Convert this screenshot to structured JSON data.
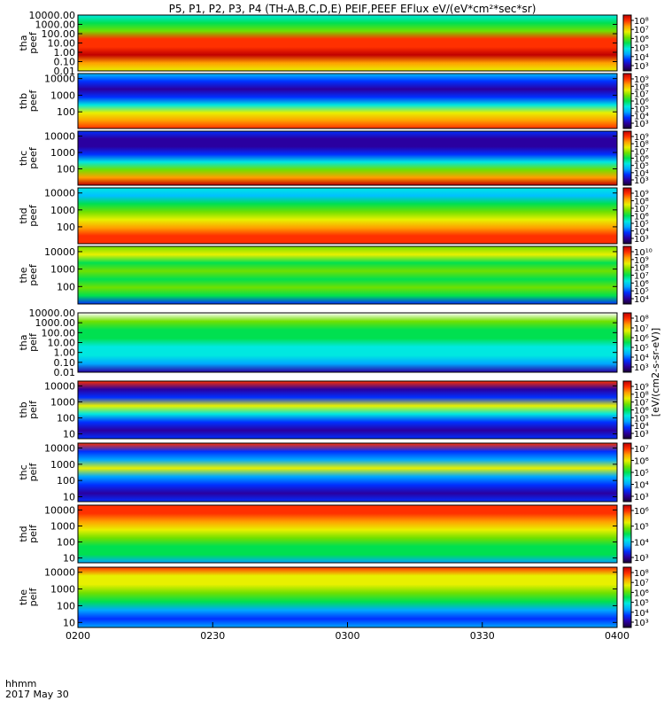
{
  "title": "P5, P1, P2, P3, P4 (TH-A,B,C,D,E) PEIF,PEEF EFlux eV/(eV*cm²*sec*sr)",
  "colorbar_label": "[eV/(cm2-s-sr-eV)]",
  "time_axis": {
    "row_label_1": "hhmm",
    "row_label_2": "2017 May 30",
    "ticks": [
      "0200",
      "0230",
      "0300",
      "0330",
      "0400"
    ],
    "range": [
      0,
      120
    ]
  },
  "colormap": [
    "#1a0033",
    "#2a00a0",
    "#0030ff",
    "#00a8ff",
    "#00e8e0",
    "#00e050",
    "#70e000",
    "#e8f000",
    "#ffa000",
    "#ff3000",
    "#c00000"
  ],
  "chart_data": [
    {
      "type": "heatmap",
      "probe": "tha",
      "species": "peef",
      "ylabel": "tha peef",
      "yscale": "log",
      "ylim": [
        0.01,
        10000
      ],
      "yticks": [
        "10000.00",
        "1000.00",
        "100.00",
        "10.00",
        "1.00",
        "0.10",
        "0.01"
      ],
      "colorbar_ticks": [
        "10⁸",
        "10⁷",
        "10⁶",
        "10⁵",
        "10⁴",
        "10³"
      ]
    },
    {
      "type": "heatmap",
      "probe": "thb",
      "species": "peef",
      "ylabel": "thb peef",
      "yscale": "log",
      "ylim": [
        10,
        20000
      ],
      "yticks": [
        "10000",
        "1000",
        "100"
      ],
      "colorbar_ticks": [
        "10⁹",
        "10⁸",
        "10⁷",
        "10⁶",
        "10⁵",
        "10⁴",
        "10³"
      ]
    },
    {
      "type": "heatmap",
      "probe": "thc",
      "species": "peef",
      "ylabel": "thc peef",
      "yscale": "log",
      "ylim": [
        10,
        20000
      ],
      "yticks": [
        "10000",
        "1000",
        "100"
      ],
      "colorbar_ticks": [
        "10⁹",
        "10⁸",
        "10⁷",
        "10⁶",
        "10⁵",
        "10⁴",
        "10³"
      ]
    },
    {
      "type": "heatmap",
      "probe": "thd",
      "species": "peef",
      "ylabel": "thd peef",
      "yscale": "log",
      "ylim": [
        10,
        20000
      ],
      "yticks": [
        "10000",
        "1000",
        "100"
      ],
      "colorbar_ticks": [
        "10⁹",
        "10⁸",
        "10⁷",
        "10⁶",
        "10⁵",
        "10⁴",
        "10³"
      ]
    },
    {
      "type": "heatmap",
      "probe": "the",
      "species": "peef",
      "ylabel": "the peef",
      "yscale": "log",
      "ylim": [
        10,
        20000
      ],
      "yticks": [
        "10000",
        "1000",
        "100"
      ],
      "colorbar_ticks": [
        "10¹⁰",
        "10⁹",
        "10⁸",
        "10⁷",
        "10⁶",
        "10⁵",
        "10⁴"
      ]
    },
    {
      "type": "heatmap",
      "probe": "tha",
      "species": "peif",
      "ylabel": "tha peif",
      "yscale": "log",
      "ylim": [
        0.01,
        10000
      ],
      "yticks": [
        "10000.00",
        "1000.00",
        "100.00",
        "10.00",
        "1.00",
        "0.10",
        "0.01"
      ],
      "colorbar_ticks": [
        "10⁸",
        "10⁷",
        "10⁶",
        "10⁵",
        "10⁴",
        "10³"
      ]
    },
    {
      "type": "heatmap",
      "probe": "thb",
      "species": "peif",
      "ylabel": "thb peif",
      "yscale": "log",
      "ylim": [
        5,
        20000
      ],
      "yticks": [
        "10000",
        "1000",
        "100",
        "10"
      ],
      "colorbar_ticks": [
        "10⁹",
        "10⁸",
        "10⁷",
        "10⁶",
        "10⁵",
        "10⁴",
        "10³"
      ]
    },
    {
      "type": "heatmap",
      "probe": "thc",
      "species": "peif",
      "ylabel": "thc peif",
      "yscale": "log",
      "ylim": [
        5,
        20000
      ],
      "yticks": [
        "10000",
        "1000",
        "100",
        "10"
      ],
      "colorbar_ticks": [
        "10⁷",
        "10⁶",
        "10⁵",
        "10⁴",
        "10³"
      ]
    },
    {
      "type": "heatmap",
      "probe": "thd",
      "species": "peif",
      "ylabel": "thd peif",
      "yscale": "log",
      "ylim": [
        5,
        20000
      ],
      "yticks": [
        "10000",
        "1000",
        "100",
        "10"
      ],
      "colorbar_ticks": [
        "10⁶",
        "10⁵",
        "10⁴",
        "10³"
      ]
    },
    {
      "type": "heatmap",
      "probe": "the",
      "species": "peif",
      "ylabel": "the peif",
      "yscale": "log",
      "ylim": [
        5,
        20000
      ],
      "yticks": [
        "10000",
        "1000",
        "100",
        "10"
      ],
      "colorbar_ticks": [
        "10⁸",
        "10⁷",
        "10⁶",
        "10⁵",
        "10⁴",
        "10³"
      ]
    }
  ]
}
